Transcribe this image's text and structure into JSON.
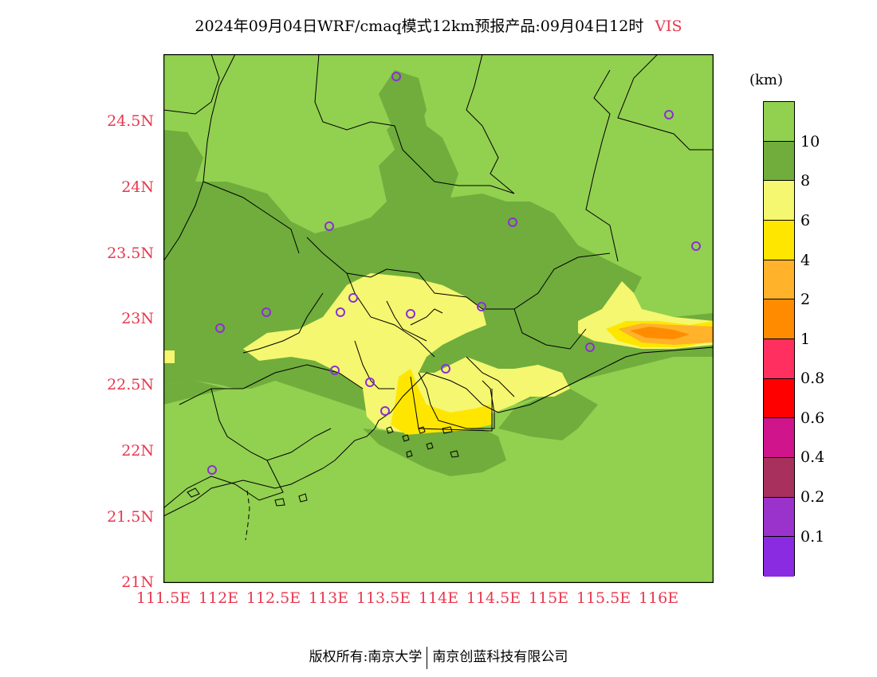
{
  "title": {
    "main": "2024年09月04日WRF/cmaq模式12km预报产品:09月04日12时",
    "variable": "VIS"
  },
  "map": {
    "lat_labels": [
      "24.5N",
      "24N",
      "23.5N",
      "23N",
      "22.5N",
      "22N",
      "21.5N",
      "21N"
    ],
    "lon_labels": [
      "111.5E",
      "112E",
      "112.5E",
      "113E",
      "113.5E",
      "114E",
      "114.5E",
      "115E",
      "115.5E",
      "116E"
    ],
    "colors": {
      "gt10": "#92d050",
      "c8_10": "#70ad3c",
      "c6_8": "#f4f76f",
      "c4_6": "#ffe600",
      "c2_4": "#ffb22a",
      "c1_2": "#ff8c00",
      "station": "#8b2fd6"
    }
  },
  "colorbar": {
    "unit": "(km)",
    "labels": [
      "10",
      "8",
      "6",
      "4",
      "2",
      "1",
      "0.8",
      "0.6",
      "0.4",
      "0.2",
      "0.1"
    ],
    "colors": [
      "#92d050",
      "#70ad3c",
      "#f4f76f",
      "#ffe600",
      "#ffb22a",
      "#ff8c00",
      "#ff3060",
      "#ff0000",
      "#d0148c",
      "#a8305c",
      "#9933cc",
      "#8a2be2"
    ]
  },
  "footer": {
    "left": "版权所有:南京大学",
    "right": "南京创蓝科技有限公司"
  }
}
